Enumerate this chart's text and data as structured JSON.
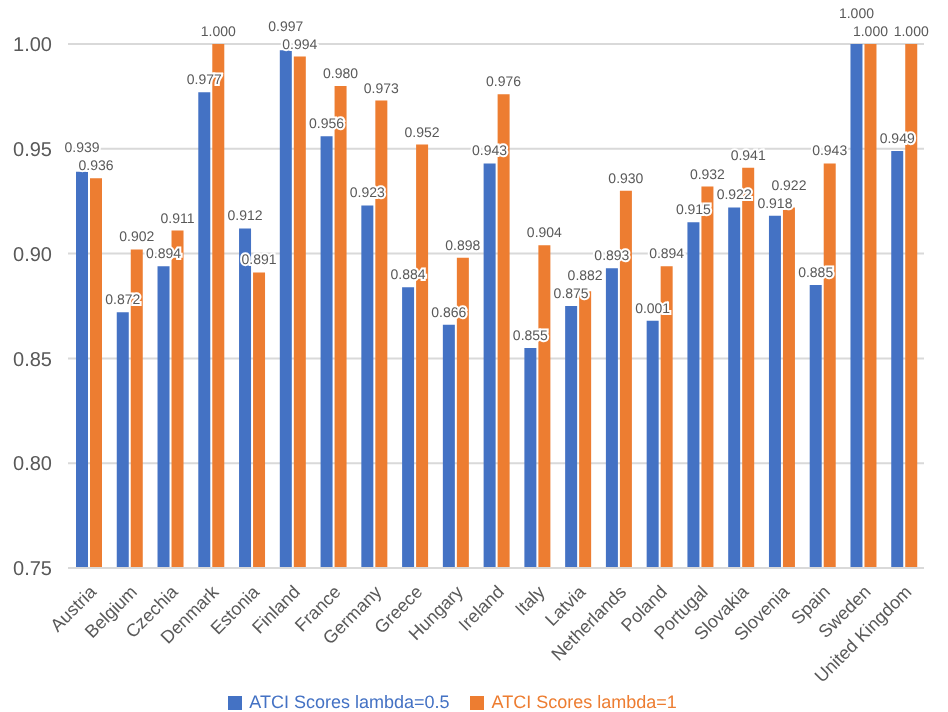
{
  "chart_data": {
    "type": "bar",
    "categories": [
      "Austria",
      "Belgium",
      "Czechia",
      "Denmark",
      "Estonia",
      "Finland",
      "France",
      "Germany",
      "Greece",
      "Hungary",
      "Ireland",
      "Italy",
      "Latvia",
      "Netherlands",
      "Poland",
      "Portugal",
      "Slovakia",
      "Slovenia",
      "Spain",
      "Sweden",
      "United Kingdom"
    ],
    "series": [
      {
        "name": "ATCI Scores lambda=0.5",
        "color": "#4472c4",
        "values": [
          0.939,
          0.872,
          0.894,
          0.977,
          0.912,
          0.997,
          0.956,
          0.923,
          0.884,
          0.866,
          0.943,
          0.855,
          0.875,
          0.893,
          0.868,
          0.915,
          0.922,
          0.918,
          0.885,
          1.0,
          0.949
        ],
        "value_labels": [
          "0.939",
          "0.872",
          "0.894",
          "0.977",
          "0.912",
          "0.997",
          "0.956",
          "0.923",
          "0.884",
          "0.866",
          "0.943",
          "0.855",
          "0.875",
          "0.893",
          null,
          "0.915",
          "0.922",
          "0.918",
          "0.885",
          "1.000",
          "0.949"
        ]
      },
      {
        "name": "ATCI Scores lambda=1",
        "color": "#ed7d31",
        "values": [
          0.936,
          0.902,
          0.911,
          1.0,
          0.891,
          0.994,
          0.98,
          0.973,
          0.952,
          0.898,
          0.976,
          0.904,
          0.882,
          0.93,
          0.894,
          0.932,
          0.941,
          0.922,
          0.943,
          1.0,
          1.0
        ],
        "value_labels": [
          "0.936",
          "0.902",
          "0.911",
          "1.000",
          "0.891",
          "0.994",
          "0.980",
          "0.973",
          "0.952",
          "0.898",
          "0.976",
          "0.904",
          "0.882",
          "0.930",
          "0.894",
          "0.932",
          "0.941",
          "0.922",
          "0.943",
          "1.000",
          "1.000"
        ]
      }
    ],
    "ylim": [
      0.75,
      1.0
    ],
    "yticks": [
      {
        "value": 0.75,
        "label": "0.75"
      },
      {
        "value": 0.8,
        "label": "0.80"
      },
      {
        "value": 0.85,
        "label": "0.85"
      },
      {
        "value": 0.9,
        "label": "0.90"
      },
      {
        "value": 0.95,
        "label": "0.95"
      },
      {
        "value": 1.0,
        "label": "1.00"
      }
    ],
    "annotations": [
      {
        "text": "0.001",
        "x": "Poland",
        "y": 0.868
      }
    ],
    "grid": "y",
    "legend": "bottom"
  }
}
